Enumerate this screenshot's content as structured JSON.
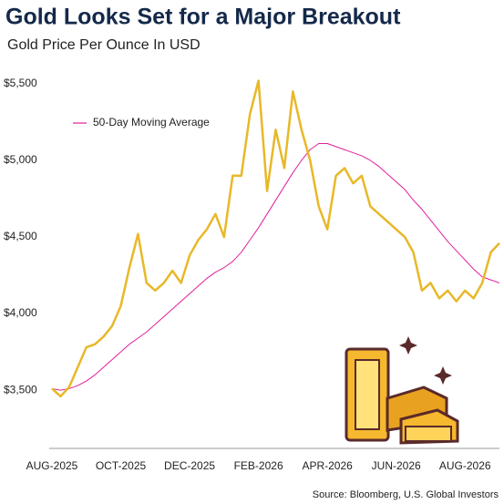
{
  "chart_data": {
    "type": "line",
    "title": "Gold Looks Set for a Major Breakout",
    "subtitle": "Gold Price Per Ounce In USD",
    "source": "Source: Bloomberg, U.S. Global Investors",
    "categories": [
      "AUG-2025",
      null,
      null,
      null,
      null,
      null,
      null,
      null,
      "OCT-2025",
      null,
      null,
      null,
      null,
      null,
      null,
      null,
      "DEC-2025",
      null,
      null,
      null,
      null,
      null,
      null,
      null,
      "FEB-2026",
      null,
      null,
      null,
      null,
      null,
      null,
      null,
      "APR-2026",
      null,
      null,
      null,
      null,
      null,
      null,
      null,
      "JUN-2026",
      null,
      null,
      null,
      null,
      null,
      null,
      null,
      "AUG-2026",
      null,
      null,
      null,
      null
    ],
    "series": [
      {
        "color": "#e8b828",
        "values": [
          3510,
          3460,
          3520,
          3650,
          3780,
          3800,
          3850,
          3920,
          4050,
          4300,
          4520,
          4200,
          4150,
          4200,
          4280,
          4200,
          4380,
          4480,
          4550,
          4650,
          4500,
          4900,
          4900,
          5300,
          5520,
          4800,
          5200,
          4950,
          5450,
          5200,
          5000,
          4700,
          4550,
          4900,
          4950,
          4850,
          4900,
          4700,
          4650,
          4600,
          4550,
          4500,
          4400,
          4150,
          4200,
          4100,
          4150,
          4080,
          4150,
          4100,
          4200,
          4400,
          4460
        ]
      },
      {
        "name": "50-Day Moving Average",
        "color": "#e0209a",
        "values": [
          3510,
          3500,
          3510,
          3530,
          3560,
          3600,
          3650,
          3700,
          3750,
          3800,
          3840,
          3880,
          3930,
          3980,
          4030,
          4080,
          4130,
          4180,
          4230,
          4270,
          4300,
          4340,
          4400,
          4480,
          4560,
          4650,
          4740,
          4830,
          4920,
          5000,
          5070,
          5110,
          5110,
          5090,
          5070,
          5050,
          5030,
          5000,
          4960,
          4910,
          4860,
          4810,
          4740,
          4680,
          4610,
          4540,
          4470,
          4410,
          4350,
          4290,
          4240,
          4220,
          4200
        ]
      }
    ],
    "ylim": [
      3120,
      5690
    ],
    "yticks": [
      {
        "value": 3500,
        "label": "$3,500"
      },
      {
        "value": 4000,
        "label": "$4,000"
      },
      {
        "value": 4500,
        "label": "$4,500"
      },
      {
        "value": 5000,
        "label": "$5,000"
      },
      {
        "value": 5500,
        "label": "$5,500"
      }
    ],
    "grid": false
  }
}
